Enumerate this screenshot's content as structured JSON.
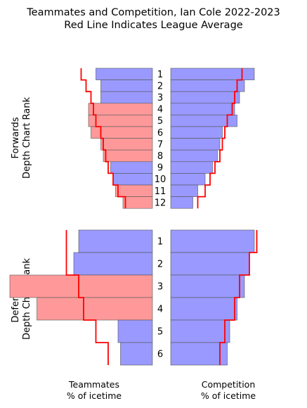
{
  "title_line1": "Teammates and Competition, Ian Cole 2022-2023",
  "title_line2": "Red Line Indicates League Average",
  "chart_data": {
    "type": "bar",
    "forwards": {
      "ylabel_line1": "Forwards",
      "ylabel_line2": "Depth Chart Rank",
      "categories": [
        "1",
        "2",
        "3",
        "4",
        "5",
        "6",
        "7",
        "8",
        "9",
        "10",
        "11",
        "12"
      ],
      "teammates": [
        0.23,
        0.21,
        0.21,
        0.26,
        0.26,
        0.25,
        0.21,
        0.2,
        0.17,
        0.16,
        0.15,
        0.12
      ],
      "teammates_avg": [
        0.29,
        0.27,
        0.25,
        0.24,
        0.23,
        0.21,
        0.2,
        0.19,
        0.18,
        0.16,
        0.14,
        0.11
      ],
      "competition": [
        0.34,
        0.3,
        0.28,
        0.26,
        0.27,
        0.21,
        0.2,
        0.19,
        0.17,
        0.14,
        0.11,
        0.09
      ],
      "competition_avg": [
        0.29,
        0.27,
        0.26,
        0.25,
        0.23,
        0.22,
        0.21,
        0.2,
        0.18,
        0.16,
        0.14,
        0.11
      ]
    },
    "defenders": {
      "ylabel_line1": "Defenders",
      "ylabel_line2": "Depth Chart Rank",
      "categories": [
        "1",
        "2",
        "3",
        "4",
        "5",
        "6"
      ],
      "teammates": [
        0.3,
        0.32,
        0.58,
        0.47,
        0.14,
        0.13
      ],
      "teammates_avg": [
        0.35,
        0.35,
        0.3,
        0.28,
        0.23,
        0.18
      ],
      "competition": [
        0.34,
        0.32,
        0.3,
        0.27,
        0.24,
        0.23
      ],
      "competition_avg": [
        0.35,
        0.32,
        0.28,
        0.26,
        0.22,
        0.2
      ]
    },
    "xlabel_left_line1": "Teammates",
    "xlabel_left_line2": "% of icetime",
    "xlabel_right_line1": "Competition",
    "xlabel_right_line2": "% of icetime",
    "colors": {
      "teammates_below_avg": "#9999ff",
      "teammates_above_avg": "#ff9999",
      "competition_bar": "#9999ff",
      "average_line": "#ff0000",
      "bar_edge": "#555555"
    }
  }
}
